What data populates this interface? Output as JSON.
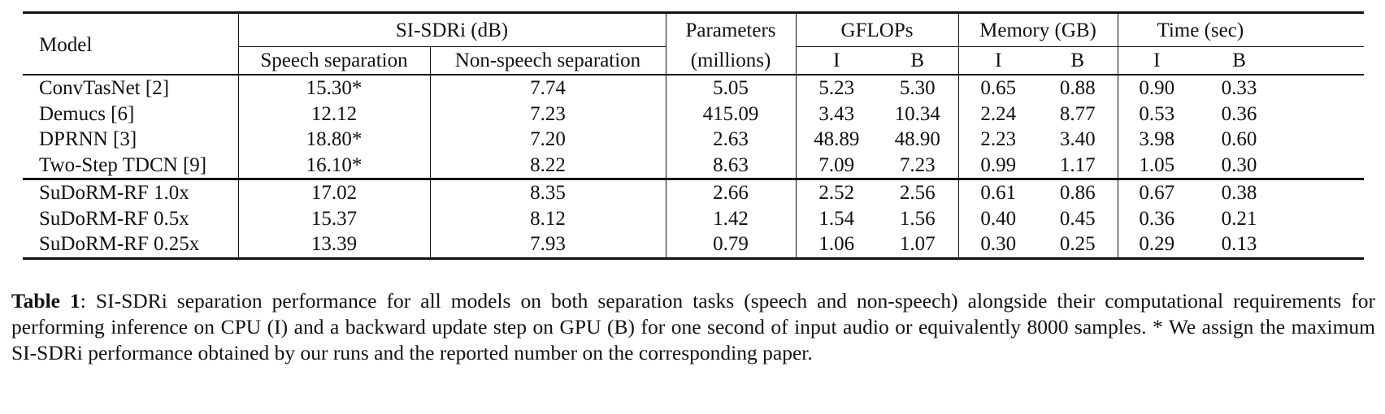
{
  "table": {
    "header": {
      "model": "Model",
      "si_sdri": "SI-SDRi (dB)",
      "speech": "Speech separation",
      "nonspeech": "Non-speech separation",
      "params_line1": "Parameters",
      "params_line2": "(millions)",
      "gflops": "GFLOPs",
      "memory": "Memory (GB)",
      "time": "Time (sec)",
      "i": "I",
      "b": "B"
    },
    "baselines": [
      {
        "model": "ConvTasNet [2]",
        "speech": "15.30*",
        "nonspeech": "7.74",
        "params": "5.05",
        "gflops_i": "5.23",
        "gflops_b": "5.30",
        "mem_i": "0.65",
        "mem_b": "0.88",
        "time_i": "0.90",
        "time_b": "0.33"
      },
      {
        "model": "Demucs [6]",
        "speech": "12.12",
        "nonspeech": "7.23",
        "params": "415.09",
        "gflops_i": "3.43",
        "gflops_b": "10.34",
        "mem_i": "2.24",
        "mem_b": "8.77",
        "time_i": "0.53",
        "time_b": "0.36"
      },
      {
        "model": "DPRNN [3]",
        "speech": "18.80*",
        "nonspeech": "7.20",
        "params": "2.63",
        "gflops_i": "48.89",
        "gflops_b": "48.90",
        "mem_i": "2.23",
        "mem_b": "3.40",
        "time_i": "3.98",
        "time_b": "0.60"
      },
      {
        "model": "Two-Step TDCN [9]",
        "speech": "16.10*",
        "nonspeech": "8.22",
        "params": "8.63",
        "gflops_i": "7.09",
        "gflops_b": "7.23",
        "mem_i": "0.99",
        "mem_b": "1.17",
        "time_i": "1.05",
        "time_b": "0.30"
      }
    ],
    "ours": [
      {
        "model": "SuDoRM-RF 1.0x",
        "speech": "17.02",
        "nonspeech": "8.35",
        "params": "2.66",
        "gflops_i": "2.52",
        "gflops_b": "2.56",
        "mem_i": "0.61",
        "mem_b": "0.86",
        "time_i": "0.67",
        "time_b": "0.38"
      },
      {
        "model": "SuDoRM-RF 0.5x",
        "speech": "15.37",
        "nonspeech": "8.12",
        "params": "1.42",
        "gflops_i": "1.54",
        "gflops_b": "1.56",
        "mem_i": "0.40",
        "mem_b": "0.45",
        "time_i": "0.36",
        "time_b": "0.21"
      },
      {
        "model": "SuDoRM-RF 0.25x",
        "speech": "13.39",
        "nonspeech": "7.93",
        "params": "0.79",
        "gflops_i": "1.06",
        "gflops_b": "1.07",
        "mem_i": "0.30",
        "mem_b": "0.25",
        "time_i": "0.29",
        "time_b": "0.13"
      }
    ]
  },
  "caption": {
    "label": "Table 1",
    "text": ": SI-SDRi separation performance for all models on both separation tasks (speech and non-speech) alongside their computational requirements for performing inference on CPU (I) and a backward update step on GPU (B) for one second of input audio or equivalently 8000 samples. * We assign the maximum SI-SDRi performance obtained by our runs and the reported number on the corresponding paper."
  }
}
